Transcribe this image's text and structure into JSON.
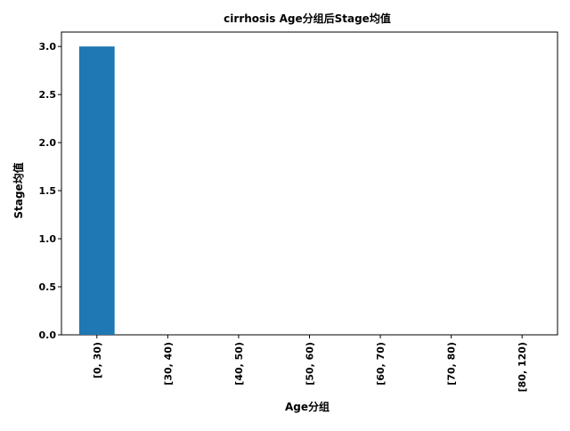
{
  "chart_data": {
    "type": "bar",
    "title": "cirrhosis Age分组后Stage均值",
    "xlabel": "Age分组",
    "ylabel": "Stage均值",
    "categories": [
      "[0, 30)",
      "[30, 40)",
      "[40, 50)",
      "[50, 60)",
      "[60, 70)",
      "[70, 80)",
      "[80, 120)"
    ],
    "values": [
      3.0,
      0,
      0,
      0,
      0,
      0,
      0
    ],
    "ylim": [
      0,
      3.15
    ],
    "yticks": [
      0.0,
      0.5,
      1.0,
      1.5,
      2.0,
      2.5,
      3.0
    ],
    "ytick_labels": [
      "0.0",
      "0.5",
      "1.0",
      "1.5",
      "2.0",
      "2.5",
      "3.0"
    ],
    "bar_color": "#1f77b4",
    "grid": false,
    "legend": "none"
  }
}
